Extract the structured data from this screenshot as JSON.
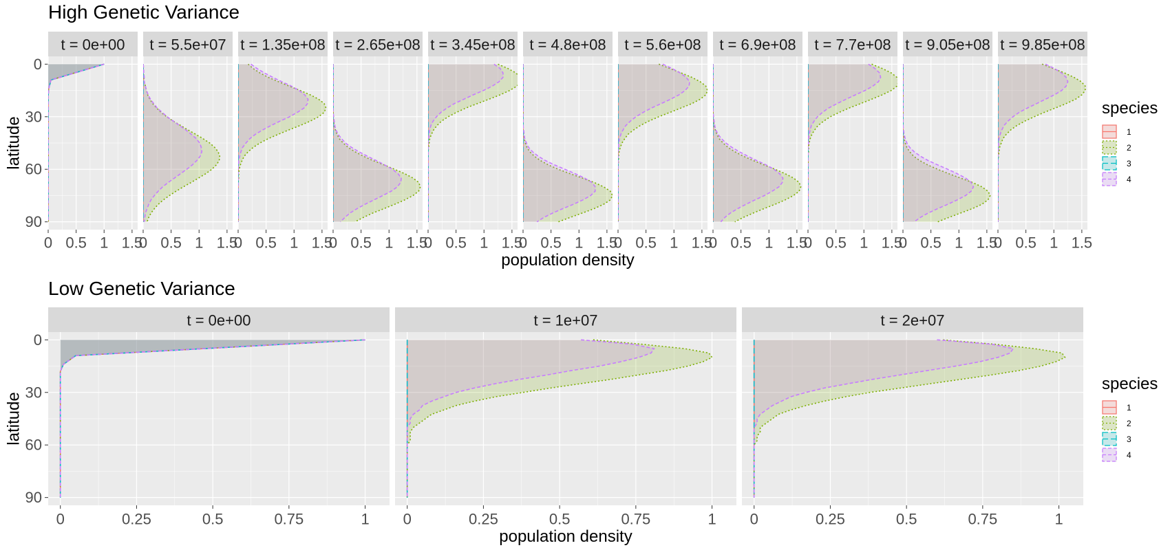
{
  "colors": {
    "panel_bg": "#EBEBEB",
    "strip_bg": "#D9D9D9",
    "grid": "#FFFFFF",
    "text": "#000000",
    "tick_text": "#4D4D4D",
    "species": [
      "#F8766D",
      "#7CAE00",
      "#00BFC4",
      "#C77CFF"
    ]
  },
  "chart_data": [
    {
      "type": "area",
      "title": "High Genetic Variance",
      "xlabel": "population density",
      "ylabel": "latitude",
      "xlim": [
        0,
        1.6
      ],
      "xticks": [
        0,
        0.5,
        1,
        1.5
      ],
      "xtick_labels": [
        "0",
        "0.5",
        "1",
        "1.5"
      ],
      "ylim": [
        0,
        90
      ],
      "y_reversed": true,
      "yticks": [
        0,
        30,
        60,
        90
      ],
      "ytick_labels": [
        "0",
        "30",
        "60",
        "90"
      ],
      "legend": {
        "title": "species",
        "position": "right",
        "labels": [
          "1",
          "2",
          "3",
          "4"
        ]
      },
      "panels": [
        {
          "label": "t = 0e+00",
          "series": [
            {
              "species": "1",
              "values": []
            },
            {
              "species": "2",
              "values": []
            },
            {
              "species": "3",
              "values": []
            },
            {
              "species": "4",
              "values": []
            }
          ]
        },
        {
          "label": "t = 5.5e+07",
          "series": [
            {
              "species": "1",
              "values": []
            },
            {
              "species": "2",
              "values": []
            },
            {
              "species": "3",
              "values": []
            },
            {
              "species": "4",
              "values": []
            }
          ]
        },
        {
          "label": "t = 1.35e+08",
          "series": [
            {
              "species": "1",
              "values": []
            },
            {
              "species": "2",
              "values": []
            },
            {
              "species": "3",
              "values": []
            },
            {
              "species": "4",
              "values": []
            }
          ]
        },
        {
          "label": "t = 2.65e+08",
          "series": [
            {
              "species": "1",
              "values": []
            },
            {
              "species": "2",
              "values": []
            },
            {
              "species": "3",
              "values": []
            },
            {
              "species": "4",
              "values": []
            }
          ]
        },
        {
          "label": "t = 3.45e+08",
          "series": [
            {
              "species": "1",
              "values": []
            },
            {
              "species": "2",
              "values": []
            },
            {
              "species": "3",
              "values": []
            },
            {
              "species": "4",
              "values": []
            }
          ]
        },
        {
          "label": "t = 4.8e+08",
          "series": [
            {
              "species": "1",
              "values": []
            },
            {
              "species": "2",
              "values": []
            },
            {
              "species": "3",
              "values": []
            },
            {
              "species": "4",
              "values": []
            }
          ]
        },
        {
          "label": "t = 5.6e+08",
          "series": [
            {
              "species": "1",
              "values": []
            },
            {
              "species": "2",
              "values": []
            },
            {
              "species": "3",
              "values": []
            },
            {
              "species": "4",
              "values": []
            }
          ]
        },
        {
          "label": "t = 6.9e+08",
          "series": [
            {
              "species": "1",
              "values": []
            },
            {
              "species": "2",
              "values": []
            },
            {
              "species": "3",
              "values": []
            },
            {
              "species": "4",
              "values": []
            }
          ]
        },
        {
          "label": "t = 7.7e+08",
          "series": [
            {
              "species": "1",
              "values": []
            },
            {
              "species": "2",
              "values": []
            },
            {
              "species": "3",
              "values": []
            },
            {
              "species": "4",
              "values": []
            }
          ]
        },
        {
          "label": "t = 9.05e+08",
          "series": [
            {
              "species": "1",
              "values": []
            },
            {
              "species": "2",
              "values": []
            },
            {
              "species": "3",
              "values": []
            },
            {
              "species": "4",
              "values": []
            }
          ]
        },
        {
          "label": "t = 9.85e+08",
          "series": [
            {
              "species": "1",
              "values": []
            },
            {
              "species": "2",
              "values": []
            },
            {
              "species": "3",
              "values": []
            },
            {
              "species": "4",
              "values": []
            }
          ]
        }
      ]
    },
    {
      "type": "area",
      "title": "Low Genetic Variance",
      "xlabel": "population density",
      "ylabel": "latitude",
      "xlim": [
        -0.04,
        1.08
      ],
      "xticks": [
        0,
        0.25,
        0.5,
        0.75,
        1
      ],
      "xtick_labels": [
        "0",
        "0.25",
        "0.5",
        "0.75",
        "1"
      ],
      "ylim": [
        0,
        90
      ],
      "y_reversed": true,
      "yticks": [
        0,
        30,
        60,
        90
      ],
      "ytick_labels": [
        "0",
        "30",
        "60",
        "90"
      ],
      "legend": {
        "title": "species",
        "position": "right",
        "labels": [
          "1",
          "2",
          "3",
          "4"
        ]
      },
      "panels": [
        {
          "label": "t = 0e+00",
          "series": [
            {
              "species": "1",
              "values": []
            },
            {
              "species": "2",
              "values": []
            },
            {
              "species": "3",
              "values": []
            },
            {
              "species": "4",
              "values": []
            }
          ]
        },
        {
          "label": "t = 1e+07",
          "series": [
            {
              "species": "1",
              "values": []
            },
            {
              "species": "2",
              "values": []
            },
            {
              "species": "3",
              "values": []
            },
            {
              "species": "4",
              "values": []
            }
          ]
        },
        {
          "label": "t = 2e+07",
          "series": [
            {
              "species": "1",
              "values": []
            },
            {
              "species": "2",
              "values": []
            },
            {
              "species": "3",
              "values": []
            },
            {
              "species": "4",
              "values": []
            }
          ]
        }
      ]
    }
  ]
}
